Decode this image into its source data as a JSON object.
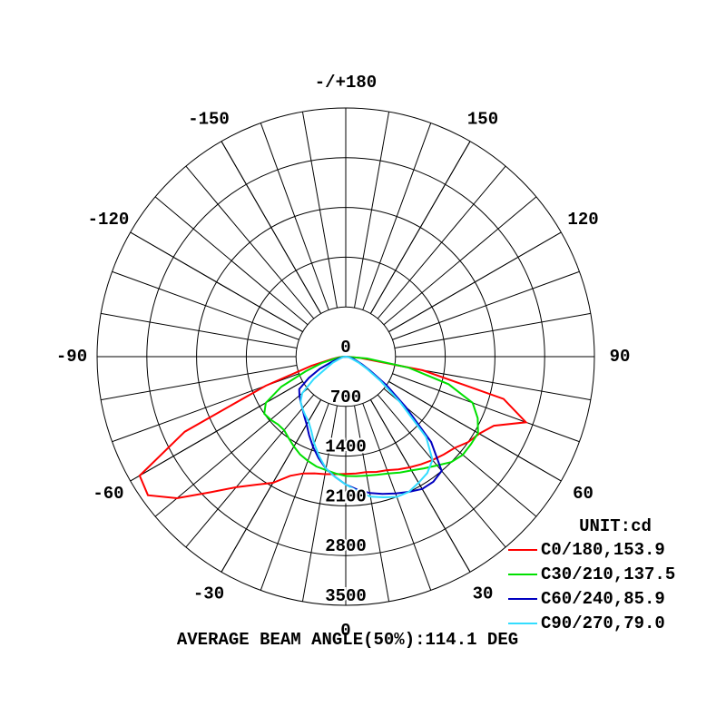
{
  "chart_data": {
    "type": "polar",
    "angle_ticks": [
      {
        "value": 180,
        "label": "-/+180"
      },
      150,
      120,
      90,
      60,
      30,
      0,
      -30,
      -60,
      -90,
      -120,
      -150
    ],
    "rlim": [
      0,
      3500
    ],
    "rticks": [
      0,
      700,
      1400,
      2100,
      2800,
      3500
    ],
    "x": [
      -90,
      -85,
      -80,
      -75,
      -70,
      -65,
      -60,
      -55,
      -50,
      -45,
      -40,
      -35,
      -30,
      -25,
      -20,
      -15,
      -10,
      -5,
      0,
      5,
      10,
      15,
      20,
      25,
      30,
      35,
      40,
      45,
      50,
      55,
      60,
      65,
      70,
      75,
      80,
      85,
      90
    ],
    "legend_title": "UNIT:cd",
    "series": [
      {
        "name": "C0/180,153.9",
        "color": "#ff0000",
        "values": [
          0,
          100,
          200,
          500,
          1200,
          2500,
          3350,
          3400,
          3100,
          2700,
          2400,
          2200,
          2050,
          1850,
          1750,
          1700,
          1680,
          1660,
          1650,
          1650,
          1650,
          1680,
          1700,
          1750,
          1800,
          1850,
          1900,
          1950,
          2000,
          2100,
          2170,
          2300,
          2700,
          2300,
          1100,
          200,
          0
        ]
      },
      {
        "name": "C30/210,137.5",
        "color": "#00e000",
        "values": [
          0,
          50,
          150,
          350,
          600,
          1000,
          1300,
          1400,
          1380,
          1350,
          1350,
          1400,
          1460,
          1520,
          1560,
          1600,
          1620,
          1650,
          1680,
          1690,
          1700,
          1720,
          1750,
          1800,
          1850,
          1920,
          2000,
          2100,
          2150,
          2150,
          2150,
          2050,
          1900,
          1500,
          900,
          300,
          0
        ]
      },
      {
        "name": "C60/240,85.9",
        "color": "#0000c0",
        "values": [
          0,
          20,
          50,
          100,
          200,
          400,
          600,
          800,
          850,
          900,
          950,
          1020,
          1100,
          1220,
          1350,
          1480,
          1600,
          1700,
          1800,
          1880,
          1950,
          2000,
          2050,
          2100,
          2150,
          2150,
          2100,
          1700,
          1100,
          700,
          400,
          250,
          150,
          100,
          50,
          20,
          0
        ]
      },
      {
        "name": "C90/270,79.0",
        "color": "#33ddff",
        "values": [
          0,
          10,
          30,
          60,
          100,
          200,
          300,
          550,
          800,
          900,
          950,
          1000,
          1050,
          1150,
          1300,
          1450,
          1600,
          1700,
          1800,
          1900,
          2000,
          2050,
          2100,
          2100,
          2050,
          2000,
          1900,
          1600,
          1000,
          600,
          350,
          200,
          100,
          60,
          30,
          10,
          0
        ]
      }
    ],
    "footer": "AVERAGE BEAM ANGLE(50%):114.1 DEG"
  }
}
